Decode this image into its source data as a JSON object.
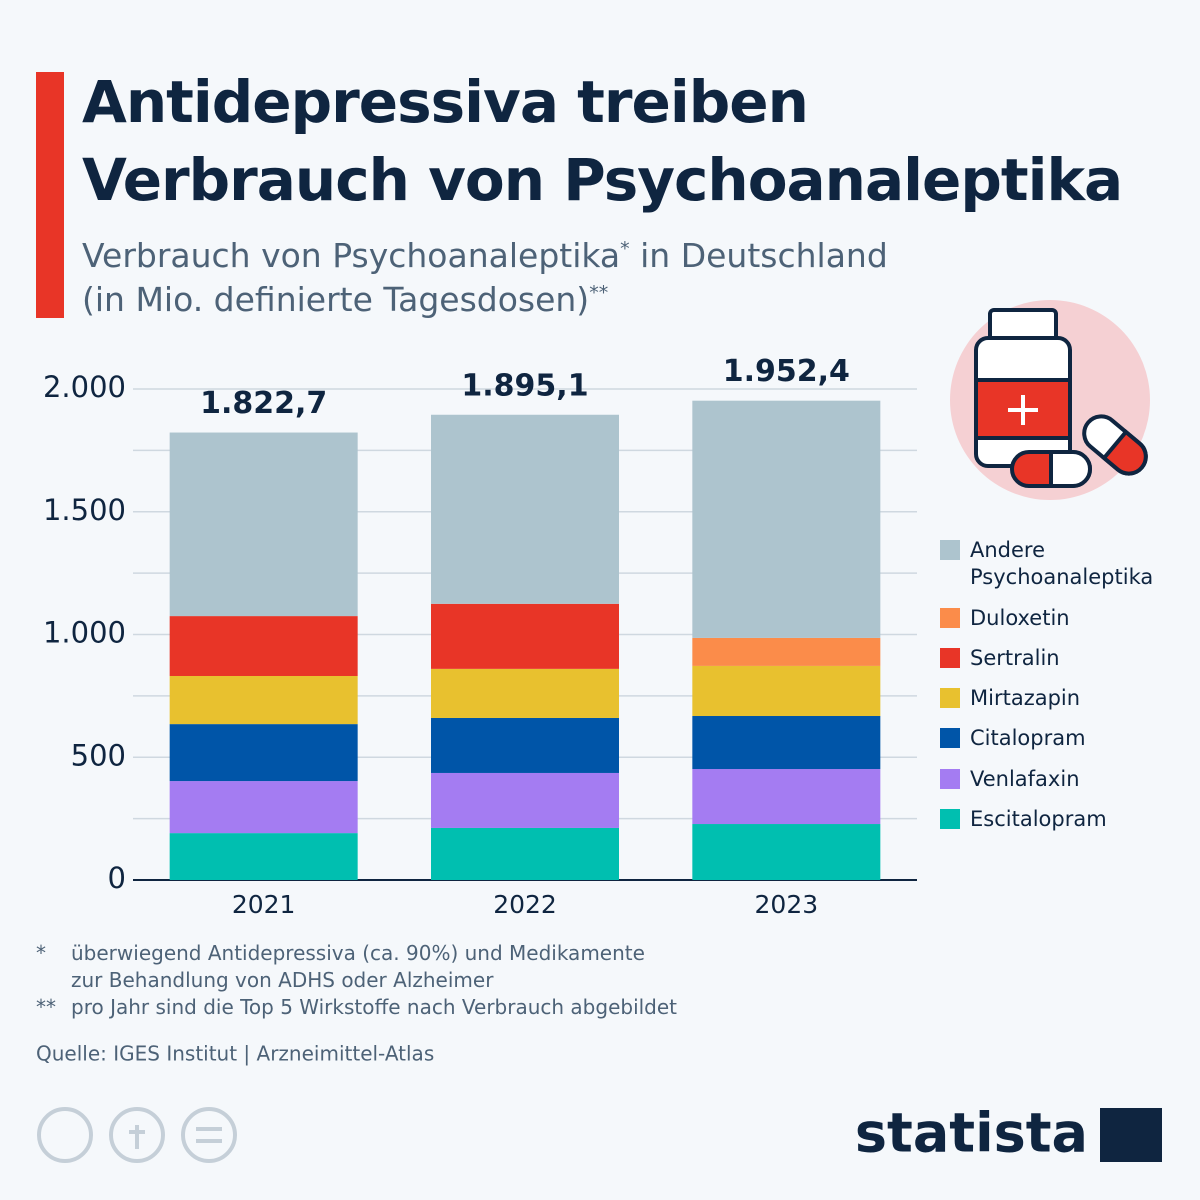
{
  "chart_data": {
    "type": "stacked_bar",
    "title": [
      "Antidepressiva treiben",
      "Verbrauch von Psychoanaleptika"
    ],
    "subtitle": [
      "Verbrauch von Psychoanaleptika",
      "*",
      " in Deutschland",
      "(in Mio. definierte Tagesdosen)",
      "**"
    ],
    "categories": [
      "2021",
      "2022",
      "2023"
    ],
    "series": [
      {
        "name": "Escitalopram",
        "color": "#00bfb0",
        "values": [
          191,
          212,
          228
        ]
      },
      {
        "name": "Venlafaxin",
        "color": "#a47cf2",
        "values": [
          212,
          224,
          224
        ]
      },
      {
        "name": "Citalopram",
        "color": "#0055a8",
        "values": [
          232,
          224,
          216
        ]
      },
      {
        "name": "Mirtazapin",
        "color": "#e8c12f",
        "values": [
          196,
          200,
          204
        ]
      },
      {
        "name": "Sertralin",
        "color": "#e83527",
        "values": [
          244,
          265,
          null
        ]
      },
      {
        "name": "Duloxetin",
        "color": "#fb8c4a",
        "values": [
          null,
          null,
          114
        ]
      },
      {
        "name": "Andere Psychoanaleptika",
        "color": "#adc4ce",
        "values": [
          747.7,
          770.1,
          966.4
        ]
      }
    ],
    "totals": [
      1822.7,
      1895.1,
      1952.4
    ],
    "total_labels": [
      "1.822,7",
      "1.895,1",
      "1.952,4"
    ],
    "ylim": [
      0,
      2000
    ],
    "yticks": [
      0,
      500,
      {
        "value": 1000,
        "label": "1.000"
      },
      {
        "value": 1500,
        "label": "1.500"
      },
      {
        "value": 2000,
        "label": "2.000"
      }
    ],
    "minor_grid": [
      250,
      750,
      1250,
      1750
    ],
    "grid": true,
    "legend": "right",
    "notes": [
      {
        "mark": "*",
        "text": [
          "überwiegend Antidepressiva (ca. 90%) und Medikamente",
          "zur Behandlung von ADHS oder Alzheimer"
        ]
      },
      {
        "mark": "**",
        "text": [
          "pro Jahr sind die Top 5 Wirkstoffe nach Verbrauch abgebildet"
        ]
      }
    ],
    "source": "Quelle: IGES Institut | Arzneimittel-Atlas",
    "brand": "statista"
  }
}
